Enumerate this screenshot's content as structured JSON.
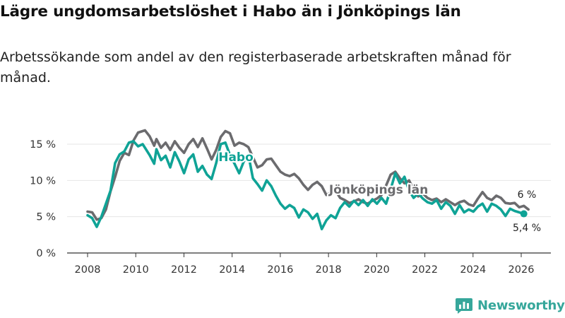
{
  "title": "Lägre ungdomsarbetslöshet i Habo än i Jönköpings län",
  "subtitle": "Arbetssökande som andel av den registerbaserade arbetskraften månad för månad.",
  "brand": {
    "name": "Newsworthy",
    "icon": "bar-chart-logo-icon"
  },
  "colors": {
    "habo": "#0fa396",
    "lan": "#6b6b6e",
    "grid": "#e6e6e6",
    "axis": "#333333"
  },
  "chart_data": {
    "type": "line",
    "title": "Lägre ungdomsarbetslöshet i Habo än i Jönköpings län",
    "xlabel": "",
    "ylabel": "",
    "xlim": [
      2007.3,
      2026.8
    ],
    "ylim": [
      0,
      17.5
    ],
    "x_ticks": [
      2008,
      2010,
      2012,
      2014,
      2016,
      2018,
      2020,
      2022,
      2024,
      2026
    ],
    "x_tick_labels": [
      "2008",
      "2010",
      "2012",
      "2014",
      "2016",
      "2018",
      "2020",
      "2022",
      "2024",
      "2026"
    ],
    "y_ticks": [
      0,
      5,
      10,
      15
    ],
    "y_tick_labels": [
      "0 %",
      "5 %",
      "10 %",
      "15 %"
    ],
    "grid": true,
    "series": [
      {
        "name": "Jönköpings län",
        "label": "Jönköpings län",
        "end_label": "6 %",
        "color": "#6b6b6e",
        "points": [
          [
            2008.0,
            5.7
          ],
          [
            2008.2,
            5.6
          ],
          [
            2008.4,
            4.6
          ],
          [
            2008.6,
            4.8
          ],
          [
            2008.8,
            6.0
          ],
          [
            2009.0,
            8.5
          ],
          [
            2009.2,
            10.5
          ],
          [
            2009.4,
            12.7
          ],
          [
            2009.6,
            13.8
          ],
          [
            2009.8,
            13.5
          ],
          [
            2010.0,
            15.5
          ],
          [
            2010.2,
            16.6
          ],
          [
            2010.4,
            16.8
          ],
          [
            2010.5,
            16.9
          ],
          [
            2010.7,
            16.1
          ],
          [
            2010.9,
            14.8
          ],
          [
            2011.0,
            15.7
          ],
          [
            2011.2,
            14.5
          ],
          [
            2011.4,
            15.2
          ],
          [
            2011.6,
            14.2
          ],
          [
            2011.8,
            15.4
          ],
          [
            2012.0,
            14.5
          ],
          [
            2012.2,
            13.8
          ],
          [
            2012.4,
            15.0
          ],
          [
            2012.6,
            15.7
          ],
          [
            2012.8,
            14.6
          ],
          [
            2013.0,
            15.8
          ],
          [
            2013.2,
            14.4
          ],
          [
            2013.4,
            12.9
          ],
          [
            2013.6,
            14.2
          ],
          [
            2013.8,
            16.0
          ],
          [
            2014.0,
            16.8
          ],
          [
            2014.2,
            16.5
          ],
          [
            2014.4,
            14.8
          ],
          [
            2014.6,
            15.2
          ],
          [
            2014.8,
            15.0
          ],
          [
            2015.0,
            14.6
          ],
          [
            2015.2,
            13.2
          ],
          [
            2015.4,
            11.8
          ],
          [
            2015.6,
            12.1
          ],
          [
            2015.8,
            12.9
          ],
          [
            2016.0,
            13.0
          ],
          [
            2016.2,
            12.1
          ],
          [
            2016.4,
            11.2
          ],
          [
            2016.6,
            10.8
          ],
          [
            2016.8,
            10.6
          ],
          [
            2017.0,
            10.9
          ],
          [
            2017.2,
            10.3
          ],
          [
            2017.4,
            9.4
          ],
          [
            2017.6,
            8.7
          ],
          [
            2017.8,
            9.4
          ],
          [
            2018.0,
            9.8
          ],
          [
            2018.2,
            9.2
          ],
          [
            2018.4,
            8.0
          ],
          [
            2018.6,
            8.3
          ],
          [
            2018.8,
            8.6
          ]
        ],
        "points2": [
          [
            2019.0,
            7.6
          ],
          [
            2019.2,
            7.3
          ],
          [
            2019.4,
            6.9
          ],
          [
            2019.6,
            7.1
          ],
          [
            2019.8,
            7.4
          ],
          [
            2020.0,
            7.0
          ],
          [
            2020.2,
            6.8
          ],
          [
            2020.4,
            7.2
          ],
          [
            2020.6,
            7.5
          ],
          [
            2020.8,
            8.0
          ],
          [
            2021.0,
            9.3
          ],
          [
            2021.2,
            10.8
          ],
          [
            2021.4,
            11.2
          ],
          [
            2021.6,
            10.3
          ],
          [
            2021.8,
            9.6
          ],
          [
            2022.0,
            10.0
          ],
          [
            2022.2,
            8.7
          ],
          [
            2022.4,
            7.8
          ],
          [
            2022.6,
            8.2
          ],
          [
            2022.8,
            7.6
          ],
          [
            2023.0,
            7.3
          ],
          [
            2023.2,
            7.5
          ],
          [
            2023.4,
            7.0
          ],
          [
            2023.6,
            7.4
          ],
          [
            2023.8,
            7.0
          ],
          [
            2024.0,
            6.6
          ],
          [
            2024.2,
            7.0
          ],
          [
            2024.4,
            7.2
          ],
          [
            2024.6,
            6.7
          ],
          [
            2024.8,
            6.5
          ],
          [
            2025.0,
            7.5
          ],
          [
            2025.2,
            8.4
          ],
          [
            2025.4,
            7.6
          ],
          [
            2025.6,
            7.3
          ],
          [
            2025.8,
            7.9
          ],
          [
            2026.0,
            7.6
          ],
          [
            2026.2,
            6.9
          ],
          [
            2026.4,
            6.8
          ],
          [
            2026.6,
            6.9
          ],
          [
            2026.8,
            6.3
          ],
          [
            2027.0,
            6.5
          ],
          [
            2027.2,
            6.0
          ]
        ]
      },
      {
        "name": "Habo",
        "label": "Habo",
        "end_label": "5,4 %",
        "color": "#0fa396",
        "points": [
          [
            2008.0,
            5.2
          ],
          [
            2008.2,
            4.8
          ],
          [
            2008.4,
            3.6
          ],
          [
            2008.6,
            5.0
          ],
          [
            2008.8,
            6.8
          ],
          [
            2009.0,
            8.6
          ],
          [
            2009.2,
            12.4
          ],
          [
            2009.4,
            13.6
          ],
          [
            2009.6,
            14.0
          ],
          [
            2009.8,
            15.2
          ],
          [
            2010.0,
            15.4
          ],
          [
            2010.2,
            14.7
          ],
          [
            2010.4,
            15.0
          ],
          [
            2010.5,
            14.5
          ],
          [
            2010.7,
            13.5
          ],
          [
            2010.9,
            12.3
          ],
          [
            2011.0,
            14.3
          ],
          [
            2011.2,
            12.8
          ],
          [
            2011.4,
            13.4
          ],
          [
            2011.6,
            11.8
          ],
          [
            2011.8,
            13.9
          ],
          [
            2012.0,
            12.6
          ],
          [
            2012.2,
            11.0
          ],
          [
            2012.4,
            12.9
          ],
          [
            2012.6,
            13.6
          ],
          [
            2012.8,
            11.2
          ],
          [
            2013.0,
            12.0
          ],
          [
            2013.2,
            10.8
          ],
          [
            2013.4,
            10.2
          ],
          [
            2013.6,
            12.4
          ],
          [
            2013.8,
            15.0
          ],
          [
            2014.0,
            15.2
          ],
          [
            2014.2,
            13.5
          ],
          [
            2014.4,
            12.3
          ],
          [
            2014.6,
            11.0
          ],
          [
            2014.8,
            12.6
          ],
          [
            2015.0,
            13.6
          ],
          [
            2015.2,
            10.3
          ],
          [
            2015.4,
            9.5
          ],
          [
            2015.6,
            8.6
          ],
          [
            2015.8,
            10.0
          ],
          [
            2016.0,
            9.2
          ],
          [
            2016.2,
            7.9
          ],
          [
            2016.4,
            6.8
          ],
          [
            2016.6,
            6.1
          ],
          [
            2016.8,
            6.6
          ],
          [
            2017.0,
            6.2
          ],
          [
            2017.2,
            4.9
          ],
          [
            2017.4,
            6.0
          ],
          [
            2017.6,
            5.6
          ],
          [
            2017.8,
            4.7
          ],
          [
            2018.0,
            5.4
          ],
          [
            2018.2,
            3.3
          ],
          [
            2018.4,
            4.5
          ],
          [
            2018.6,
            5.2
          ],
          [
            2018.8,
            4.8
          ]
        ],
        "points2": [
          [
            2019.0,
            6.2
          ],
          [
            2019.2,
            7.0
          ],
          [
            2019.4,
            6.4
          ],
          [
            2019.6,
            7.2
          ],
          [
            2019.8,
            6.6
          ],
          [
            2020.0,
            7.3
          ],
          [
            2020.2,
            6.5
          ],
          [
            2020.4,
            7.4
          ],
          [
            2020.6,
            6.8
          ],
          [
            2020.8,
            7.6
          ],
          [
            2021.0,
            6.8
          ],
          [
            2021.2,
            8.8
          ],
          [
            2021.4,
            11.0
          ],
          [
            2021.6,
            9.6
          ],
          [
            2021.8,
            10.5
          ],
          [
            2022.0,
            8.6
          ],
          [
            2022.2,
            7.6
          ],
          [
            2022.4,
            8.2
          ],
          [
            2022.6,
            7.5
          ],
          [
            2022.8,
            7.0
          ],
          [
            2023.0,
            6.8
          ],
          [
            2023.2,
            7.3
          ],
          [
            2023.4,
            6.1
          ],
          [
            2023.6,
            7.0
          ],
          [
            2023.8,
            6.5
          ],
          [
            2024.0,
            5.4
          ],
          [
            2024.2,
            6.6
          ],
          [
            2024.4,
            5.6
          ],
          [
            2024.6,
            6.0
          ],
          [
            2024.8,
            5.7
          ],
          [
            2025.0,
            6.4
          ],
          [
            2025.2,
            6.8
          ],
          [
            2025.4,
            5.7
          ],
          [
            2025.6,
            6.8
          ],
          [
            2025.8,
            6.5
          ],
          [
            2026.0,
            6.0
          ],
          [
            2026.2,
            5.1
          ],
          [
            2026.4,
            6.1
          ],
          [
            2026.6,
            5.8
          ],
          [
            2026.8,
            5.6
          ],
          [
            2027.0,
            5.4
          ]
        ]
      }
    ]
  }
}
